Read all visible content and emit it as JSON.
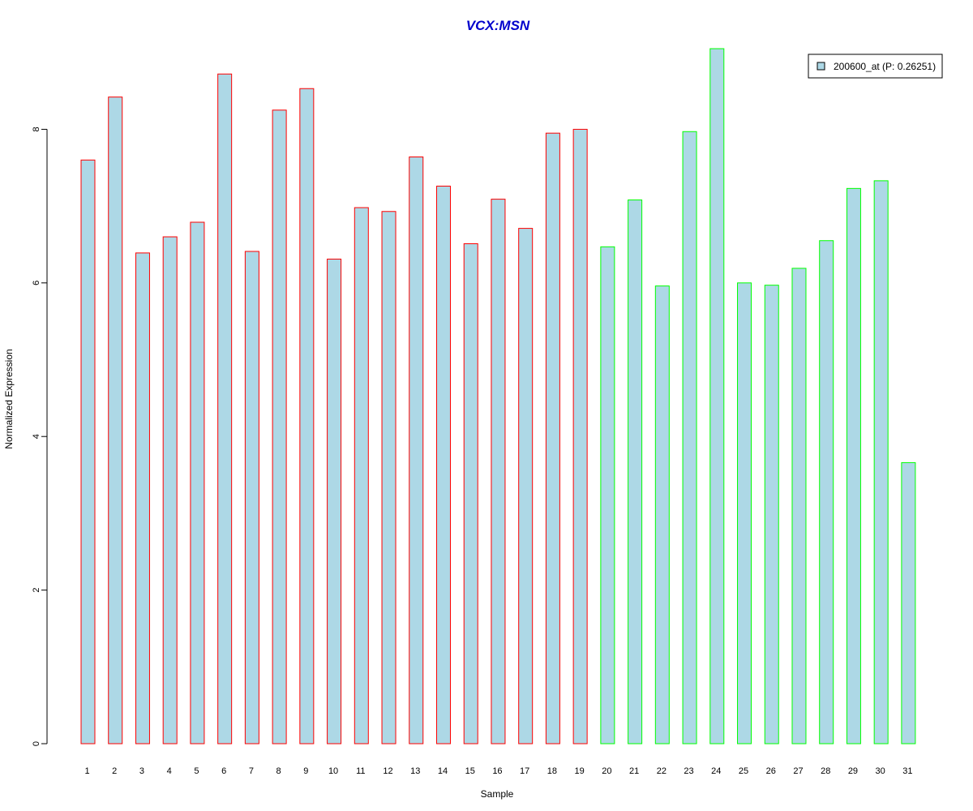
{
  "chart_data": {
    "type": "bar",
    "title": "VCX:MSN",
    "title_color": "#0000CC",
    "xlabel": "Sample",
    "ylabel": "Normalized Expression",
    "ylim": [
      0,
      9.05
    ],
    "yticks": [
      0,
      2,
      4,
      6,
      8
    ],
    "grid": false,
    "legend_position": "top-right",
    "categories": [
      "1",
      "2",
      "3",
      "4",
      "5",
      "6",
      "7",
      "8",
      "9",
      "10",
      "11",
      "12",
      "13",
      "14",
      "15",
      "16",
      "17",
      "18",
      "19",
      "20",
      "21",
      "22",
      "23",
      "24",
      "25",
      "26",
      "27",
      "28",
      "29",
      "30",
      "31"
    ],
    "series": [
      {
        "name": "200600_at (P: 0.26251)",
        "fill": "#ADD8E6",
        "values": [
          7.6,
          8.42,
          6.39,
          6.6,
          6.79,
          8.72,
          6.41,
          8.25,
          8.53,
          6.31,
          6.98,
          6.93,
          7.64,
          7.26,
          6.51,
          7.09,
          6.71,
          7.95,
          8.0,
          6.47,
          7.08,
          5.96,
          7.97,
          9.05,
          6.0,
          5.97,
          6.19,
          6.55,
          7.23,
          7.33,
          3.66
        ]
      }
    ],
    "group_border_colors": [
      "#FF0000",
      "#FF0000",
      "#FF0000",
      "#FF0000",
      "#FF0000",
      "#FF0000",
      "#FF0000",
      "#FF0000",
      "#FF0000",
      "#FF0000",
      "#FF0000",
      "#FF0000",
      "#FF0000",
      "#FF0000",
      "#FF0000",
      "#FF0000",
      "#FF0000",
      "#FF0000",
      "#FF0000",
      "#00FF00",
      "#00FF00",
      "#00FF00",
      "#00FF00",
      "#00FF00",
      "#00FF00",
      "#00FF00",
      "#00FF00",
      "#00FF00",
      "#00FF00",
      "#00FF00",
      "#00FF00"
    ]
  }
}
